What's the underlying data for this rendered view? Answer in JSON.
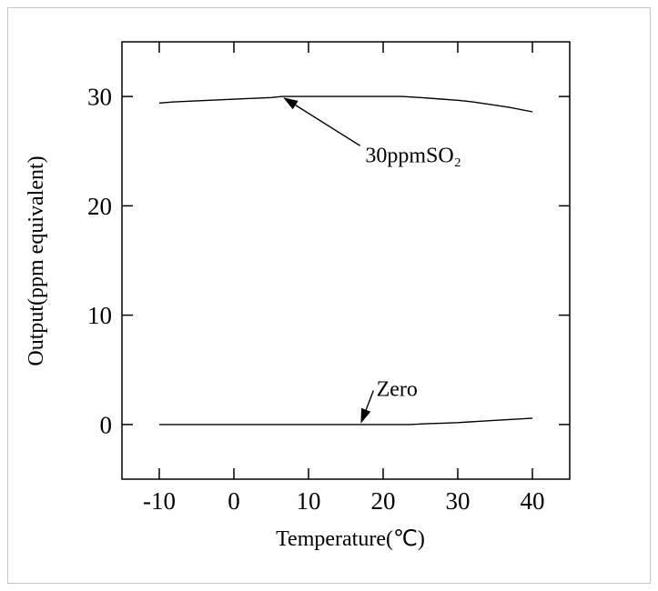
{
  "chart_data": {
    "type": "line",
    "xlabel": "Temperature(℃)",
    "ylabel": "Output(ppm equivalent)",
    "xlim": [
      -15,
      45
    ],
    "ylim": [
      -5,
      35
    ],
    "xticks": [
      -10,
      0,
      10,
      20,
      30,
      40
    ],
    "xtick_labels": [
      "-10",
      "0",
      "10",
      "20",
      "30",
      "40"
    ],
    "yticks": [
      0,
      10,
      20,
      30
    ],
    "ytick_labels": [
      "0",
      "10",
      "20",
      "30"
    ],
    "grid": false,
    "legend": "none",
    "colors": {
      "line": "#000000",
      "frame": "#c6c6c6"
    },
    "series": [
      {
        "name": "30ppmSO₂",
        "x": [
          -10,
          -8,
          -5,
          0,
          5,
          6.5,
          10,
          15,
          20,
          22.5,
          25,
          27,
          30,
          32,
          34.5,
          37,
          40
        ],
        "y": [
          29.4,
          29.5,
          29.6,
          29.75,
          29.9,
          30.0,
          30.0,
          30.0,
          30.0,
          30.0,
          29.9,
          29.8,
          29.65,
          29.5,
          29.25,
          29.0,
          28.6
        ]
      },
      {
        "name": "Zero",
        "x": [
          -10,
          0,
          10,
          20,
          23.5,
          26,
          28,
          30,
          33,
          35,
          38,
          40
        ],
        "y": [
          0,
          0,
          0,
          0,
          0,
          0.08,
          0.12,
          0.17,
          0.3,
          0.38,
          0.5,
          0.58
        ]
      }
    ]
  }
}
